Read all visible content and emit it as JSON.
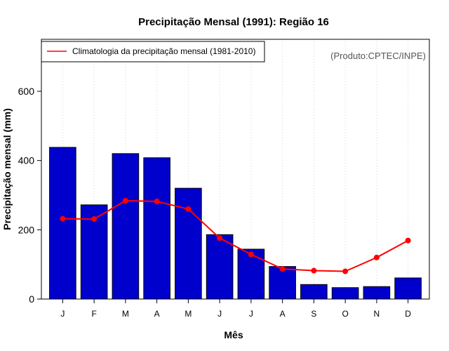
{
  "chart_data": {
    "type": "bar",
    "title": "Precipitação Mensal (1991): Região 16",
    "xlabel": "Mês",
    "ylabel": "Precipitação mensal (mm)",
    "categories": [
      "J",
      "F",
      "M",
      "A",
      "M",
      "J",
      "J",
      "A",
      "S",
      "O",
      "N",
      "D"
    ],
    "ylim": [
      0,
      750
    ],
    "yticks": [
      0,
      200,
      400,
      600
    ],
    "series": [
      {
        "name": "Precipitação mensal (1991)",
        "kind": "bar",
        "color": "#0000cd",
        "values": [
          438,
          272,
          420,
          408,
          320,
          186,
          144,
          94,
          42,
          33,
          36,
          61
        ]
      },
      {
        "name": "Climatologia da precipitação mensal (1981-2010)",
        "kind": "line",
        "color": "#ff0000",
        "values": [
          232,
          231,
          284,
          282,
          260,
          176,
          129,
          87,
          82,
          80,
          120,
          169
        ]
      }
    ],
    "legend": {
      "position": "top-left",
      "entries": [
        "Climatologia da precipitação mensal (1981-2010)"
      ]
    },
    "annotation": "(Produto:CPTEC/INPE)",
    "grid": "vertical dotted"
  }
}
